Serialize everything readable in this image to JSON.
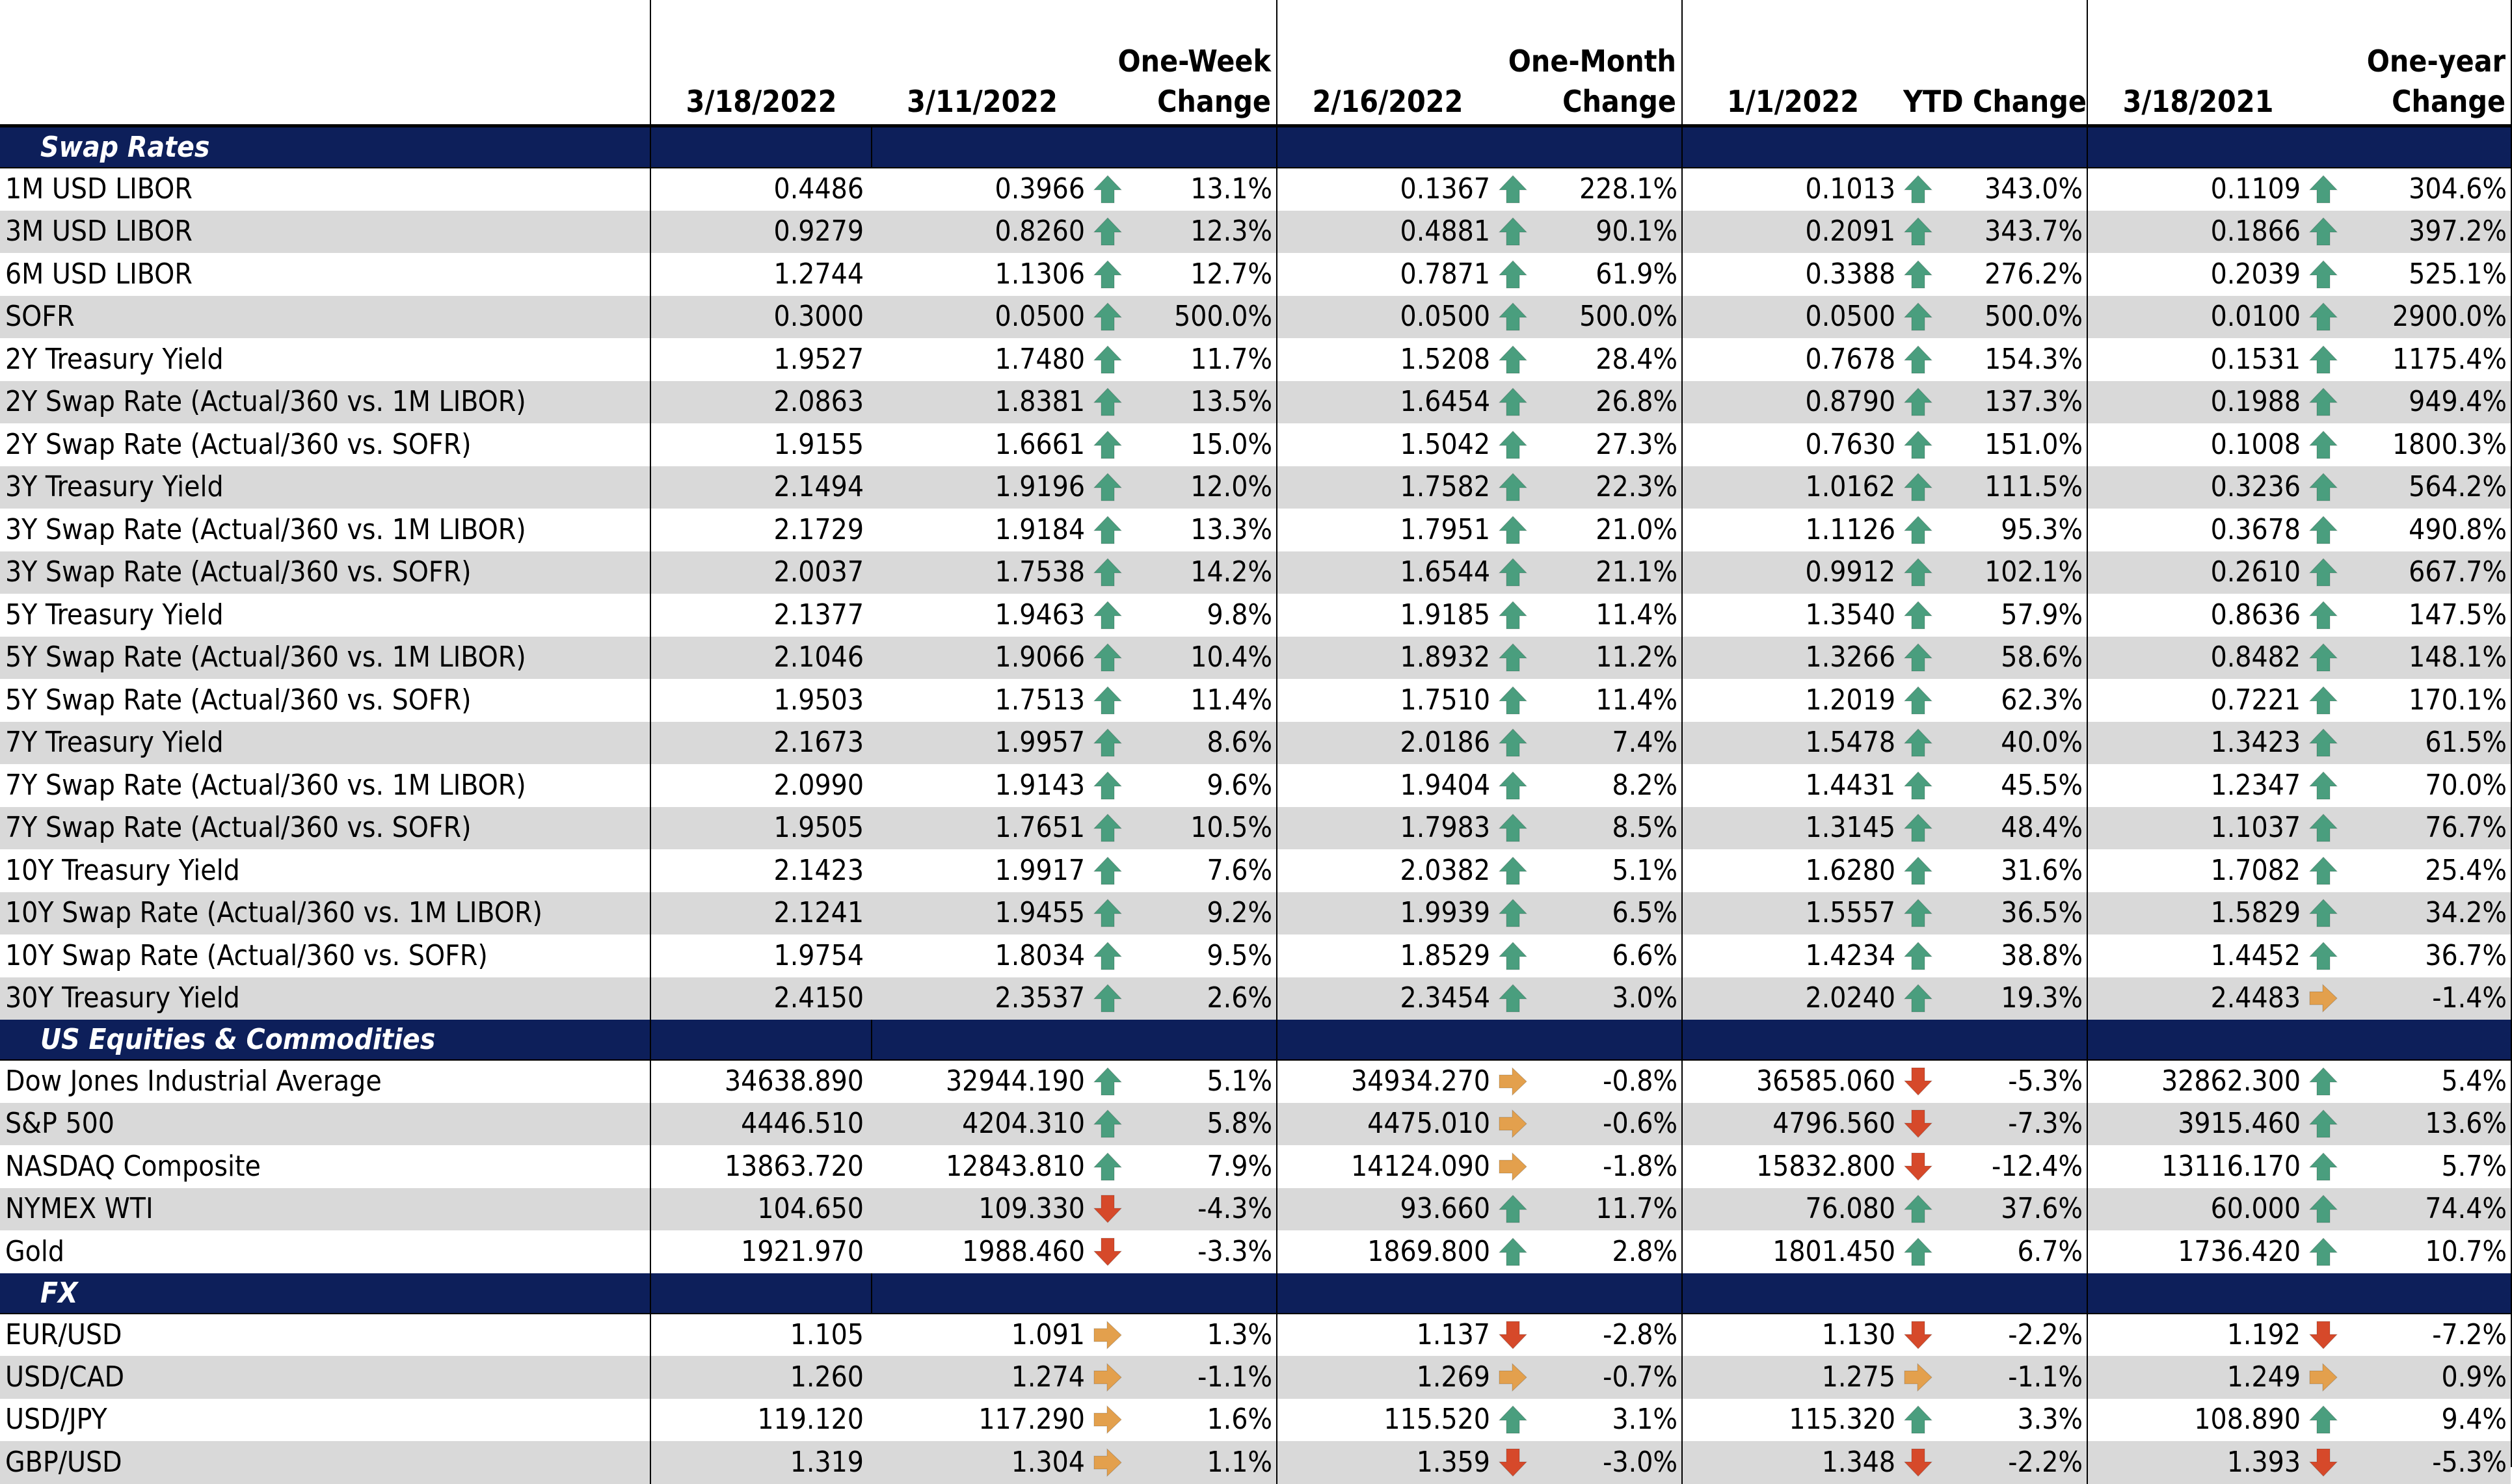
{
  "colors": {
    "up": "#4a9e7e",
    "down": "#d6492a",
    "flat": "#e3a04d",
    "section_bg": "#0d1f5a"
  },
  "header": {
    "d1": "3/18/2022",
    "d2": "3/11/2022",
    "c2": [
      "One-Week",
      "Change"
    ],
    "d3": "2/16/2022",
    "c3": [
      "One-Month",
      "Change"
    ],
    "d4": "1/1/2022",
    "c4": [
      "YTD Change"
    ],
    "d5": "3/18/2021",
    "c5": [
      "One-year",
      "Change"
    ]
  },
  "sections": [
    {
      "title": "Swap Rates",
      "rows": [
        [
          "1M USD LIBOR",
          "0.4486",
          "0.3966",
          "up",
          "13.1%",
          "0.1367",
          "up",
          "228.1%",
          "0.1013",
          "up",
          "343.0%",
          "0.1109",
          "up",
          "304.6%"
        ],
        [
          "3M USD LIBOR",
          "0.9279",
          "0.8260",
          "up",
          "12.3%",
          "0.4881",
          "up",
          "90.1%",
          "0.2091",
          "up",
          "343.7%",
          "0.1866",
          "up",
          "397.2%"
        ],
        [
          "6M USD LIBOR",
          "1.2744",
          "1.1306",
          "up",
          "12.7%",
          "0.7871",
          "up",
          "61.9%",
          "0.3388",
          "up",
          "276.2%",
          "0.2039",
          "up",
          "525.1%"
        ],
        [
          "SOFR",
          "0.3000",
          "0.0500",
          "up",
          "500.0%",
          "0.0500",
          "up",
          "500.0%",
          "0.0500",
          "up",
          "500.0%",
          "0.0100",
          "up",
          "2900.0%"
        ],
        [
          "2Y Treasury Yield",
          "1.9527",
          "1.7480",
          "up",
          "11.7%",
          "1.5208",
          "up",
          "28.4%",
          "0.7678",
          "up",
          "154.3%",
          "0.1531",
          "up",
          "1175.4%"
        ],
        [
          "2Y Swap Rate (Actual/360 vs. 1M LIBOR)",
          "2.0863",
          "1.8381",
          "up",
          "13.5%",
          "1.6454",
          "up",
          "26.8%",
          "0.8790",
          "up",
          "137.3%",
          "0.1988",
          "up",
          "949.4%"
        ],
        [
          "2Y Swap Rate (Actual/360 vs. SOFR)",
          "1.9155",
          "1.6661",
          "up",
          "15.0%",
          "1.5042",
          "up",
          "27.3%",
          "0.7630",
          "up",
          "151.0%",
          "0.1008",
          "up",
          "1800.3%"
        ],
        [
          "3Y Treasury Yield",
          "2.1494",
          "1.9196",
          "up",
          "12.0%",
          "1.7582",
          "up",
          "22.3%",
          "1.0162",
          "up",
          "111.5%",
          "0.3236",
          "up",
          "564.2%"
        ],
        [
          "3Y Swap Rate (Actual/360 vs. 1M LIBOR)",
          "2.1729",
          "1.9184",
          "up",
          "13.3%",
          "1.7951",
          "up",
          "21.0%",
          "1.1126",
          "up",
          "95.3%",
          "0.3678",
          "up",
          "490.8%"
        ],
        [
          "3Y Swap Rate (Actual/360 vs. SOFR)",
          "2.0037",
          "1.7538",
          "up",
          "14.2%",
          "1.6544",
          "up",
          "21.1%",
          "0.9912",
          "up",
          "102.1%",
          "0.2610",
          "up",
          "667.7%"
        ],
        [
          "5Y Treasury Yield",
          "2.1377",
          "1.9463",
          "up",
          "9.8%",
          "1.9185",
          "up",
          "11.4%",
          "1.3540",
          "up",
          "57.9%",
          "0.8636",
          "up",
          "147.5%"
        ],
        [
          "5Y Swap Rate (Actual/360 vs. 1M LIBOR)",
          "2.1046",
          "1.9066",
          "up",
          "10.4%",
          "1.8932",
          "up",
          "11.2%",
          "1.3266",
          "up",
          "58.6%",
          "0.8482",
          "up",
          "148.1%"
        ],
        [
          "5Y Swap Rate (Actual/360 vs. SOFR)",
          "1.9503",
          "1.7513",
          "up",
          "11.4%",
          "1.7510",
          "up",
          "11.4%",
          "1.2019",
          "up",
          "62.3%",
          "0.7221",
          "up",
          "170.1%"
        ],
        [
          "7Y Treasury Yield",
          "2.1673",
          "1.9957",
          "up",
          "8.6%",
          "2.0186",
          "up",
          "7.4%",
          "1.5478",
          "up",
          "40.0%",
          "1.3423",
          "up",
          "61.5%"
        ],
        [
          "7Y Swap Rate (Actual/360 vs. 1M LIBOR)",
          "2.0990",
          "1.9143",
          "up",
          "9.6%",
          "1.9404",
          "up",
          "8.2%",
          "1.4431",
          "up",
          "45.5%",
          "1.2347",
          "up",
          "70.0%"
        ],
        [
          "7Y Swap Rate (Actual/360 vs. SOFR)",
          "1.9505",
          "1.7651",
          "up",
          "10.5%",
          "1.7983",
          "up",
          "8.5%",
          "1.3145",
          "up",
          "48.4%",
          "1.1037",
          "up",
          "76.7%"
        ],
        [
          "10Y Treasury Yield",
          "2.1423",
          "1.9917",
          "up",
          "7.6%",
          "2.0382",
          "up",
          "5.1%",
          "1.6280",
          "up",
          "31.6%",
          "1.7082",
          "up",
          "25.4%"
        ],
        [
          "10Y Swap Rate (Actual/360 vs. 1M LIBOR)",
          "2.1241",
          "1.9455",
          "up",
          "9.2%",
          "1.9939",
          "up",
          "6.5%",
          "1.5557",
          "up",
          "36.5%",
          "1.5829",
          "up",
          "34.2%"
        ],
        [
          "10Y Swap Rate (Actual/360 vs. SOFR)",
          "1.9754",
          "1.8034",
          "up",
          "9.5%",
          "1.8529",
          "up",
          "6.6%",
          "1.4234",
          "up",
          "38.8%",
          "1.4452",
          "up",
          "36.7%"
        ],
        [
          "30Y Treasury Yield",
          "2.4150",
          "2.3537",
          "up",
          "2.6%",
          "2.3454",
          "up",
          "3.0%",
          "2.0240",
          "up",
          "19.3%",
          "2.4483",
          "flat",
          "-1.4%"
        ]
      ]
    },
    {
      "title": "US Equities & Commodities",
      "rows": [
        [
          "Dow Jones Industrial Average",
          "34638.890",
          "32944.190",
          "up",
          "5.1%",
          "34934.270",
          "flat",
          "-0.8%",
          "36585.060",
          "down",
          "-5.3%",
          "32862.300",
          "up",
          "5.4%"
        ],
        [
          "S&P 500",
          "4446.510",
          "4204.310",
          "up",
          "5.8%",
          "4475.010",
          "flat",
          "-0.6%",
          "4796.560",
          "down",
          "-7.3%",
          "3915.460",
          "up",
          "13.6%"
        ],
        [
          "NASDAQ Composite",
          "13863.720",
          "12843.810",
          "up",
          "7.9%",
          "14124.090",
          "flat",
          "-1.8%",
          "15832.800",
          "down",
          "-12.4%",
          "13116.170",
          "up",
          "5.7%"
        ],
        [
          "NYMEX WTI",
          "104.650",
          "109.330",
          "down",
          "-4.3%",
          "93.660",
          "up",
          "11.7%",
          "76.080",
          "up",
          "37.6%",
          "60.000",
          "up",
          "74.4%"
        ],
        [
          "Gold",
          "1921.970",
          "1988.460",
          "down",
          "-3.3%",
          "1869.800",
          "up",
          "2.8%",
          "1801.450",
          "up",
          "6.7%",
          "1736.420",
          "up",
          "10.7%"
        ]
      ]
    },
    {
      "title": "FX",
      "rows": [
        [
          "EUR/USD",
          "1.105",
          "1.091",
          "flat",
          "1.3%",
          "1.137",
          "down",
          "-2.8%",
          "1.130",
          "down",
          "-2.2%",
          "1.192",
          "down",
          "-7.2%"
        ],
        [
          "USD/CAD",
          "1.260",
          "1.274",
          "flat",
          "-1.1%",
          "1.269",
          "flat",
          "-0.7%",
          "1.275",
          "flat",
          "-1.1%",
          "1.249",
          "flat",
          "0.9%"
        ],
        [
          "USD/JPY",
          "119.120",
          "117.290",
          "flat",
          "1.6%",
          "115.520",
          "up",
          "3.1%",
          "115.320",
          "up",
          "3.3%",
          "108.890",
          "up",
          "9.4%"
        ],
        [
          "GBP/USD",
          "1.319",
          "1.304",
          "flat",
          "1.1%",
          "1.359",
          "down",
          "-3.0%",
          "1.348",
          "down",
          "-2.2%",
          "1.393",
          "down",
          "-5.3%"
        ]
      ]
    }
  ]
}
